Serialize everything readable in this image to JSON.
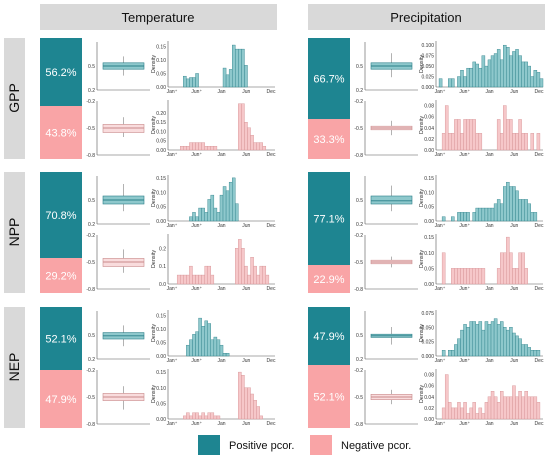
{
  "columns": [
    "Temperature",
    "Precipitation"
  ],
  "rows": [
    "GPP",
    "NPP",
    "NEP"
  ],
  "legend": {
    "positive": "Positive pcor.",
    "negative": "Negative pcor.",
    "positive_color": "#1e8591",
    "negative_color": "#f9a4a6",
    "hist_pos_fill": "#8ec8cc",
    "hist_neg_fill": "#f6c7c9"
  },
  "x_ticks": [
    "Jan⁺",
    "Jun⁺",
    "Jan",
    "Jun",
    "Dec"
  ],
  "y_axis_label": "Density",
  "chart_data": [
    {
      "type": "bar",
      "row": "GPP",
      "column": "Temperature",
      "positive_pct": "56.2%",
      "negative_pct": "43.8%",
      "positive_share": 0.562,
      "box_pos": {
        "ticks": [
          "0.5",
          "0.2"
        ],
        "ylim": [
          0.2,
          0.8
        ],
        "q1": 0.46,
        "median": 0.5,
        "q3": 0.54,
        "min": 0.38,
        "max": 0.62
      },
      "box_neg": {
        "ticks": [
          "-0.2",
          "-0.5",
          "-0.8"
        ],
        "ylim": [
          -0.8,
          -0.2
        ],
        "q1": -0.55,
        "median": -0.5,
        "q3": -0.46,
        "min": -0.6,
        "max": -0.38
      },
      "hist_pos": {
        "yticks": [
          "0.00",
          "0.05",
          "0.10",
          "0.15"
        ],
        "ymax": 0.17,
        "values": [
          0,
          0,
          0,
          0,
          0,
          0.04,
          0.03,
          0.035,
          0.035,
          0.05,
          0,
          0,
          0,
          0,
          0,
          0,
          0,
          0,
          0.07,
          0.045,
          0.065,
          0.155,
          0.14,
          0.14,
          0.14,
          0.08,
          0,
          0,
          0,
          0,
          0,
          0,
          0,
          0,
          0
        ]
      },
      "hist_neg": {
        "yticks": [
          "0.00",
          "0.05",
          "0.10",
          "0.15",
          "0.20"
        ],
        "ymax": 0.27,
        "values": [
          0,
          0,
          0,
          0,
          0.02,
          0.02,
          0.02,
          0.04,
          0.04,
          0.04,
          0.04,
          0.04,
          0.02,
          0.02,
          0.02,
          0.02,
          0,
          0,
          0,
          0,
          0,
          0,
          0,
          0.25,
          0.25,
          0.15,
          0.12,
          0.08,
          0.04,
          0.04,
          0.04,
          0.02,
          0,
          0,
          0
        ]
      }
    },
    {
      "type": "bar",
      "row": "GPP",
      "column": "Precipitation",
      "positive_pct": "66.7%",
      "negative_pct": "33.3%",
      "positive_share": 0.667,
      "box_pos": {
        "ticks": [
          "0.5",
          "0.2"
        ],
        "ylim": [
          0.2,
          0.8
        ],
        "q1": 0.46,
        "median": 0.5,
        "q3": 0.54,
        "min": 0.36,
        "max": 0.66
      },
      "box_neg": {
        "ticks": [
          "-0.2",
          "-0.5",
          "-0.8"
        ],
        "ylim": [
          -0.8,
          -0.2
        ],
        "q1": -0.52,
        "median": -0.5,
        "q3": -0.48,
        "min": -0.58,
        "max": -0.42
      },
      "hist_pos": {
        "yticks": [
          "0.000",
          "0.025",
          "0.050",
          "0.075",
          "0.100"
        ],
        "ymax": 0.11,
        "values": [
          0,
          0.02,
          0,
          0,
          0.02,
          0.02,
          0,
          0.025,
          0.04,
          0.025,
          0.045,
          0.045,
          0.06,
          0.055,
          0.045,
          0.075,
          0.05,
          0.065,
          0.075,
          0.08,
          0.09,
          0.065,
          0.1,
          0.095,
          0.075,
          0.085,
          0.09,
          0.075,
          0.06,
          0.06,
          0.05,
          0.025,
          0.04,
          0.035,
          0.02
        ]
      },
      "hist_neg": {
        "yticks": [
          "0.00",
          "0.02",
          "0.04",
          "0.06",
          "0.08"
        ],
        "ymax": 0.09,
        "values": [
          0,
          0,
          0.03,
          0.08,
          0.03,
          0.03,
          0.055,
          0.055,
          0.03,
          0.055,
          0.055,
          0.055,
          0.055,
          0.03,
          0.03,
          0,
          0,
          0,
          0,
          0,
          0.055,
          0.03,
          0.08,
          0.055,
          0.055,
          0.03,
          0.03,
          0.055,
          0.03,
          0.03,
          0,
          0.03,
          0,
          0.03,
          0
        ]
      }
    },
    {
      "type": "bar",
      "row": "NPP",
      "column": "Temperature",
      "positive_pct": "70.8%",
      "negative_pct": "29.2%",
      "positive_share": 0.708,
      "box_pos": {
        "ticks": [
          "0.5",
          "0.2"
        ],
        "ylim": [
          0.2,
          0.8
        ],
        "q1": 0.45,
        "median": 0.5,
        "q3": 0.55,
        "min": 0.36,
        "max": 0.7
      },
      "box_neg": {
        "ticks": [
          "-0.2",
          "-0.5",
          "-0.8"
        ],
        "ylim": [
          -0.8,
          -0.2
        ],
        "q1": -0.55,
        "median": -0.5,
        "q3": -0.46,
        "min": -0.62,
        "max": -0.36
      },
      "hist_pos": {
        "yticks": [
          "0.00",
          "0.05",
          "0.10",
          "0.15"
        ],
        "ymax": 0.16,
        "values": [
          0,
          0,
          0,
          0,
          0,
          0,
          0,
          0.015,
          0.03,
          0.015,
          0.045,
          0.045,
          0.03,
          0.075,
          0.09,
          0.045,
          0.03,
          0.09,
          0.12,
          0.105,
          0.135,
          0.15,
          0.06,
          0,
          0,
          0,
          0,
          0,
          0,
          0,
          0,
          0,
          0,
          0,
          0
        ]
      },
      "hist_neg": {
        "yticks": [
          "0.0",
          "0.1",
          "0.2"
        ],
        "ymax": 0.28,
        "values": [
          0,
          0,
          0,
          0.05,
          0.05,
          0.05,
          0.05,
          0.1,
          0.05,
          0.05,
          0.05,
          0.05,
          0.1,
          0.1,
          0.05,
          0,
          0,
          0,
          0,
          0,
          0,
          0,
          0.2,
          0.25,
          0.2,
          0.1,
          0.05,
          0.15,
          0.1,
          0.05,
          0.1,
          0.1,
          0.05,
          0,
          0
        ]
      }
    },
    {
      "type": "bar",
      "row": "NPP",
      "column": "Precipitation",
      "positive_pct": "77.1%",
      "negative_pct": "22.9%",
      "positive_share": 0.771,
      "box_pos": {
        "ticks": [
          "0.5",
          "0.2"
        ],
        "ylim": [
          0.2,
          0.8
        ],
        "q1": 0.45,
        "median": 0.49,
        "q3": 0.55,
        "min": 0.36,
        "max": 0.68
      },
      "box_neg": {
        "ticks": [
          "-0.2",
          "-0.5",
          "-0.8"
        ],
        "ylim": [
          -0.8,
          -0.2
        ],
        "q1": -0.52,
        "median": -0.5,
        "q3": -0.48,
        "min": -0.56,
        "max": -0.44
      },
      "hist_pos": {
        "yticks": [
          "0.00",
          "0.05",
          "0.10",
          "0.15"
        ],
        "ymax": 0.16,
        "values": [
          0,
          0,
          0.015,
          0,
          0,
          0.015,
          0,
          0.03,
          0.03,
          0.03,
          0.03,
          0,
          0.03,
          0.045,
          0.045,
          0.045,
          0.045,
          0.045,
          0.045,
          0.06,
          0.075,
          0.06,
          0.12,
          0.135,
          0.12,
          0.12,
          0.105,
          0.075,
          0.075,
          0.075,
          0.06,
          0.03,
          0.03,
          0,
          0
        ]
      },
      "hist_neg": {
        "yticks": [
          "0.00",
          "0.05",
          "0.10",
          "0.15"
        ],
        "ymax": 0.16,
        "values": [
          0,
          0,
          0.1,
          0,
          0,
          0.05,
          0.05,
          0.05,
          0.05,
          0.05,
          0.05,
          0.05,
          0.05,
          0.05,
          0.05,
          0.05,
          0,
          0,
          0,
          0,
          0.05,
          0.1,
          0.1,
          0.15,
          0.1,
          0.05,
          0.05,
          0.1,
          0.1,
          0.05,
          0,
          0,
          0,
          0,
          0
        ]
      }
    },
    {
      "type": "bar",
      "row": "NEP",
      "column": "Temperature",
      "positive_pct": "52.1%",
      "negative_pct": "47.9%",
      "positive_share": 0.521,
      "box_pos": {
        "ticks": [
          "0.5",
          "0.2"
        ],
        "ylim": [
          0.2,
          0.8
        ],
        "q1": 0.45,
        "median": 0.49,
        "q3": 0.53,
        "min": 0.36,
        "max": 0.62
      },
      "box_neg": {
        "ticks": [
          "-0.2",
          "-0.5",
          "-0.8"
        ],
        "ylim": [
          -0.8,
          -0.2
        ],
        "q1": -0.54,
        "median": -0.5,
        "q3": -0.46,
        "min": -0.64,
        "max": -0.38
      },
      "hist_pos": {
        "yticks": [
          "0.00",
          "0.05",
          "0.10",
          "0.15"
        ],
        "ymax": 0.17,
        "values": [
          0,
          0,
          0,
          0,
          0,
          0,
          0.04,
          0.06,
          0.08,
          0.09,
          0.14,
          0.11,
          0.13,
          0.12,
          0.06,
          0.07,
          0.06,
          0.04,
          0.01,
          0.01,
          0,
          0,
          0,
          0,
          0,
          0,
          0,
          0,
          0,
          0,
          0,
          0,
          0,
          0,
          0
        ]
      },
      "hist_neg": {
        "yticks": [
          "0.00",
          "0.05",
          "0.10",
          "0.15"
        ],
        "ymax": 0.16,
        "values": [
          0,
          0,
          0,
          0,
          0,
          0.01,
          0.02,
          0.01,
          0.02,
          0.02,
          0.01,
          0.02,
          0.01,
          0.02,
          0.02,
          0.01,
          0.01,
          0,
          0,
          0,
          0,
          0,
          0,
          0.15,
          0.14,
          0.1,
          0.1,
          0.08,
          0.06,
          0.04,
          0.01,
          0,
          0,
          0,
          0
        ]
      }
    },
    {
      "type": "bar",
      "row": "NEP",
      "column": "Precipitation",
      "positive_pct": "47.9%",
      "negative_pct": "52.1%",
      "positive_share": 0.479,
      "box_pos": {
        "ticks": [
          "0.5",
          "0.2"
        ],
        "ylim": [
          0.2,
          0.8
        ],
        "q1": 0.47,
        "median": 0.49,
        "q3": 0.51,
        "min": 0.38,
        "max": 0.6
      },
      "box_neg": {
        "ticks": [
          "-0.2",
          "-0.5",
          "-0.8"
        ],
        "ylim": [
          -0.8,
          -0.2
        ],
        "q1": -0.53,
        "median": -0.5,
        "q3": -0.47,
        "min": -0.58,
        "max": -0.42
      },
      "hist_pos": {
        "yticks": [
          "0.000",
          "0.025",
          "0.050",
          "0.075"
        ],
        "ymax": 0.08,
        "values": [
          0,
          0,
          0.01,
          0,
          0.01,
          0.01,
          0.02,
          0.03,
          0.045,
          0.055,
          0.05,
          0.06,
          0.06,
          0.055,
          0.06,
          0.045,
          0.06,
          0.055,
          0.06,
          0.065,
          0.055,
          0.06,
          0.05,
          0.045,
          0.05,
          0.04,
          0.035,
          0.03,
          0.02,
          0.02,
          0.015,
          0.01,
          0.01,
          0.01,
          0
        ]
      },
      "hist_neg": {
        "yticks": [
          "0.00",
          "0.02",
          "0.04",
          "0.06",
          "0.08"
        ],
        "ymax": 0.09,
        "values": [
          0,
          0,
          0.02,
          0.08,
          0.03,
          0.02,
          0.02,
          0.03,
          0.02,
          0.03,
          0.01,
          0.02,
          0.03,
          0.01,
          0.02,
          0.01,
          0.03,
          0.04,
          0.05,
          0.04,
          0.03,
          0.05,
          0.04,
          0.04,
          0.04,
          0.06,
          0.04,
          0.05,
          0.04,
          0.05,
          0.04,
          0.04,
          0.04,
          0.03,
          0
        ]
      }
    }
  ]
}
